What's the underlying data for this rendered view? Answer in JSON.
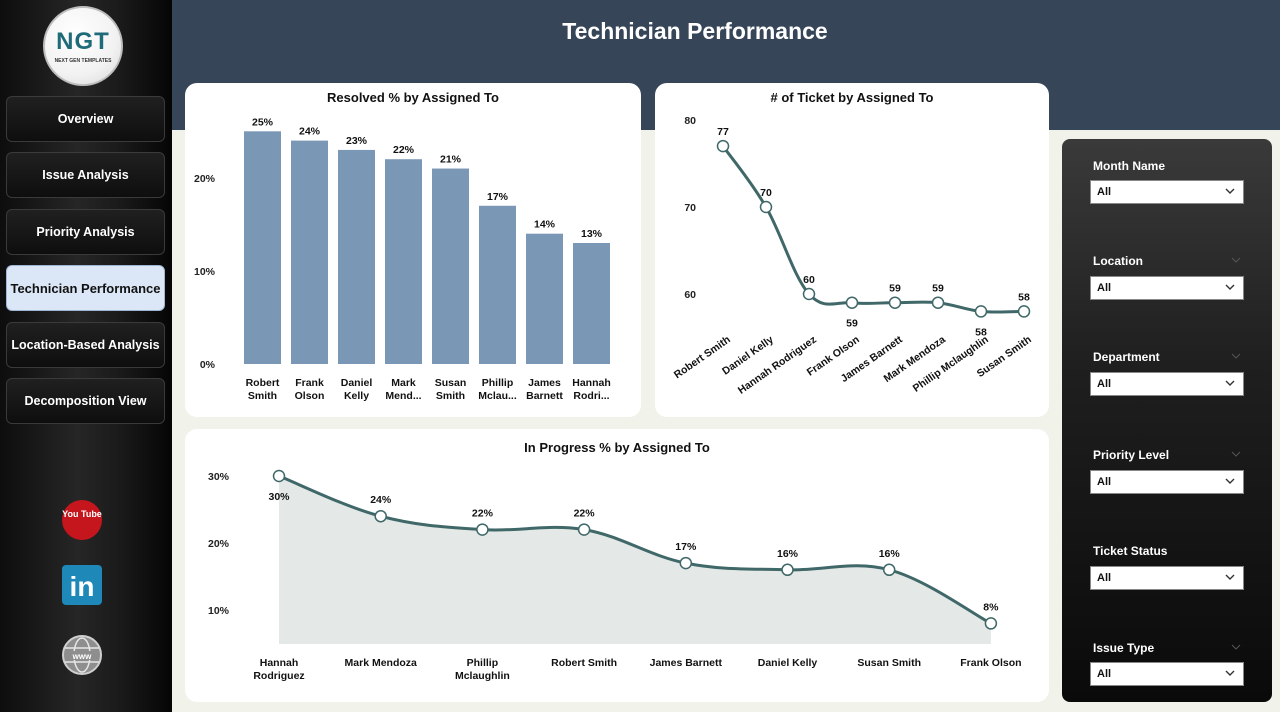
{
  "header": {
    "title": "Technician Performance"
  },
  "logo": {
    "text": "NGT",
    "subtitle": "NEXT GEN TEMPLATES"
  },
  "nav": [
    {
      "label": "Overview"
    },
    {
      "label": "Issue Analysis"
    },
    {
      "label": "Priority Analysis"
    },
    {
      "label": "Technician Performance"
    },
    {
      "label": "Location-Based Analysis"
    },
    {
      "label": "Decomposition View"
    }
  ],
  "social": {
    "youtube_text": "You Tube",
    "linkedin_text": "in",
    "web_text": "www"
  },
  "colors": {
    "bar": "#7a97b5",
    "line": "#406868",
    "area": "#e4e9e8",
    "header": "#364558"
  },
  "filters": [
    {
      "label": "Month Name",
      "value": "All"
    },
    {
      "label": "Location",
      "value": "All"
    },
    {
      "label": "Department",
      "value": "All"
    },
    {
      "label": "Priority Level",
      "value": "All"
    },
    {
      "label": "Ticket Status",
      "value": "All"
    },
    {
      "label": "Issue Type",
      "value": "All"
    }
  ],
  "chart_data": [
    {
      "type": "bar",
      "title": "Resolved % by Assigned To",
      "categories": [
        [
          "Robert",
          "Smith"
        ],
        [
          "Frank",
          "Olson"
        ],
        [
          "Daniel",
          "Kelly"
        ],
        [
          "Mark",
          "Mend..."
        ],
        [
          "Susan",
          "Smith"
        ],
        [
          "Phillip",
          "Mclau..."
        ],
        [
          "James",
          "Barnett"
        ],
        [
          "Hannah",
          "Rodri..."
        ]
      ],
      "values": [
        25,
        24,
        23,
        22,
        21,
        17,
        14,
        13
      ],
      "value_labels": [
        "25%",
        "24%",
        "23%",
        "22%",
        "21%",
        "17%",
        "14%",
        "13%"
      ],
      "yticks": [
        0,
        10,
        20
      ],
      "ytick_labels": [
        "0%",
        "10%",
        "20%"
      ],
      "ylim": [
        0,
        26
      ]
    },
    {
      "type": "line",
      "title": "# of Ticket by Assigned To",
      "categories": [
        "Robert Smith",
        "Daniel Kelly",
        "Hannah Rodriguez",
        "Frank Olson",
        "James Barnett",
        "Mark Mendoza",
        "Phillip Mclaughlin",
        "Susan Smith"
      ],
      "values": [
        77,
        70,
        60,
        59,
        59,
        59,
        58,
        58
      ],
      "value_labels": [
        "77",
        "70",
        "60",
        "59",
        "59",
        "59",
        "58",
        "58"
      ],
      "yticks": [
        60,
        70,
        80
      ],
      "ytick_labels": [
        "60",
        "70",
        "80"
      ],
      "ylim": [
        59,
        80
      ]
    },
    {
      "type": "area",
      "title": "In Progress % by Assigned To",
      "categories": [
        [
          "Hannah",
          "Rodriguez"
        ],
        [
          "Mark Mendoza"
        ],
        [
          "Phillip",
          "Mclaughlin"
        ],
        [
          "Robert Smith"
        ],
        [
          "James Barnett"
        ],
        [
          "Daniel Kelly"
        ],
        [
          "Susan Smith"
        ],
        [
          "Frank Olson"
        ]
      ],
      "values": [
        30,
        24,
        22,
        22,
        17,
        16,
        16,
        8
      ],
      "value_labels": [
        "30%",
        "24%",
        "22%",
        "22%",
        "17%",
        "16%",
        "16%",
        "8%"
      ],
      "yticks": [
        10,
        20,
        30
      ],
      "ytick_labels": [
        "10%",
        "20%",
        "30%"
      ],
      "ylim": [
        5.5,
        30
      ]
    }
  ]
}
